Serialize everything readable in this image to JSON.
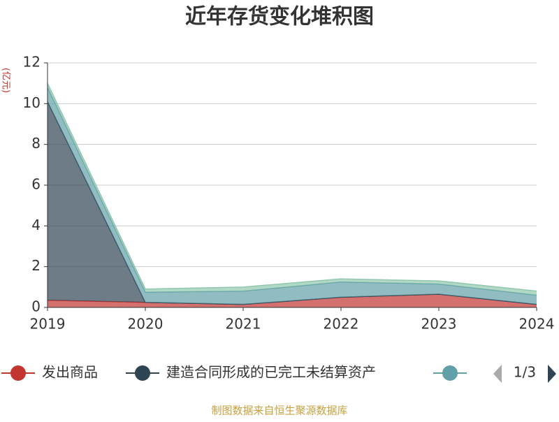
{
  "chart_data": {
    "type": "stacked-area",
    "title": "近年存货变化堆积图",
    "y_label": "(亿元)",
    "categories": [
      "2019",
      "2020",
      "2021",
      "2022",
      "2023",
      "2024"
    ],
    "series": [
      {
        "name": "发出商品",
        "color": "#c23531",
        "values": [
          0.35,
          0.25,
          0.15,
          0.5,
          0.65,
          0.15
        ]
      },
      {
        "name": "建造合同形成的已完工未结算资产",
        "color": "#2f4554",
        "values": [
          9.75,
          0,
          0,
          0,
          0,
          0
        ]
      },
      {
        "color": "#61a0a8",
        "values": [
          0.7,
          0.5,
          0.65,
          0.75,
          0.5,
          0.45
        ]
      },
      {
        "color": "#91c7ae",
        "values": [
          0.2,
          0.15,
          0.2,
          0.15,
          0.15,
          0.2
        ]
      }
    ],
    "ylim": [
      0,
      12
    ],
    "yticks": [
      0,
      2,
      4,
      6,
      8,
      10,
      12
    ],
    "grid": true,
    "legend_page": "1/3",
    "source": "制图数据来自恒生聚源数据库"
  }
}
